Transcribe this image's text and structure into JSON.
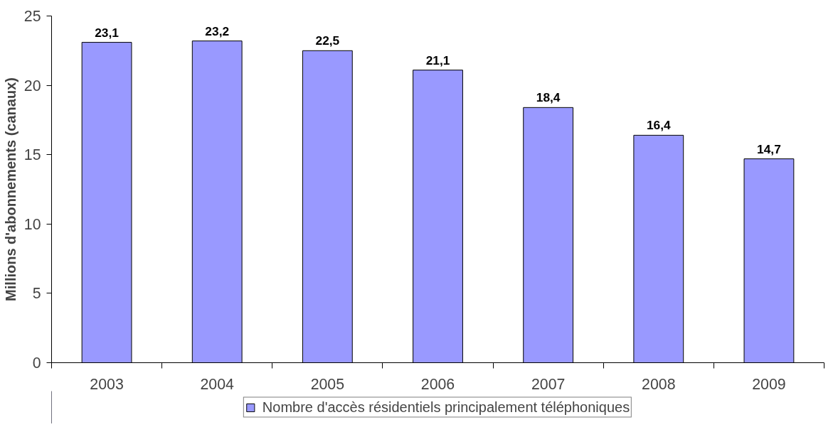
{
  "chart_data": {
    "type": "bar",
    "ylabel": "Millions d'abonnements (canaux)",
    "categories": [
      "2003",
      "2004",
      "2005",
      "2006",
      "2007",
      "2008",
      "2009"
    ],
    "series": [
      {
        "name": "Nombre d'accès résidentiels principalement téléphoniques",
        "color": "#9999ff",
        "values": [
          23.1,
          23.2,
          22.5,
          21.1,
          18.4,
          16.4,
          14.7
        ],
        "value_labels": [
          "23,1",
          "23,2",
          "22,5",
          "21,1",
          "18,4",
          "16,4",
          "14,7"
        ]
      }
    ],
    "ylim": [
      0,
      25
    ],
    "yticks": [
      0,
      5,
      10,
      15,
      20,
      25
    ],
    "grid": false,
    "legend": "bottom"
  }
}
